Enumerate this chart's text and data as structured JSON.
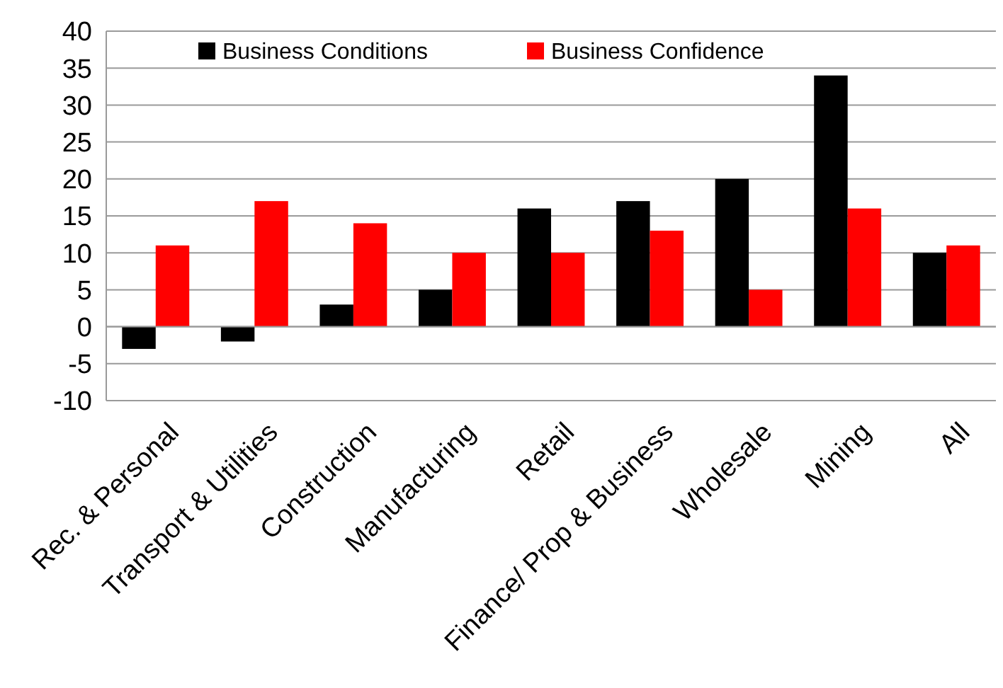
{
  "chart_data": {
    "type": "bar",
    "categories": [
      "Rec. & Personal",
      "Transport & Utilities",
      "Construction",
      "Manufacturing",
      "Retail",
      "Finance/ Prop & Business",
      "Wholesale",
      "Mining",
      "All"
    ],
    "series": [
      {
        "name": "Business Conditions",
        "color": "#000000",
        "values": [
          -3,
          -2,
          3,
          5,
          16,
          17,
          20,
          34,
          10
        ]
      },
      {
        "name": "Business Confidence",
        "color": "#ff0000",
        "values": [
          11,
          17,
          14,
          10,
          10,
          13,
          5,
          16,
          11
        ]
      }
    ],
    "ylim": [
      -10,
      40
    ],
    "yticks": [
      -10,
      -5,
      0,
      5,
      10,
      15,
      20,
      25,
      30,
      35,
      40
    ],
    "grid": "y",
    "legend": "top"
  }
}
